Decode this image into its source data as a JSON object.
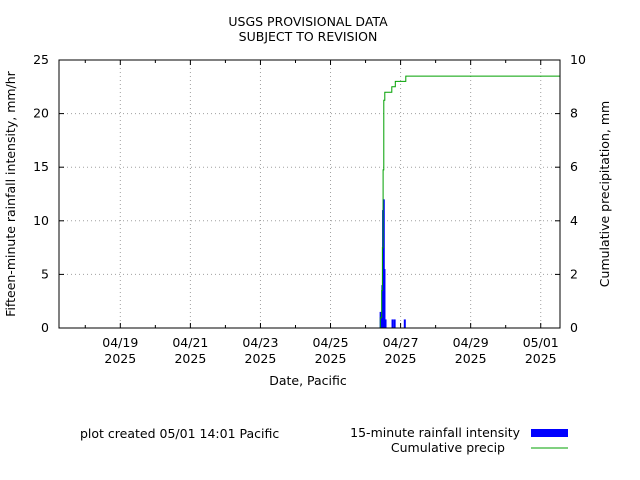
{
  "chart_data": {
    "type": "bar+line",
    "title_line1": "USGS PROVISIONAL DATA",
    "title_line2": "SUBJECT TO REVISION",
    "xlabel": "Date, Pacific",
    "ylabel_left": "Fifteen-minute rainfall intensity, mm/hr",
    "ylabel_right": "Cumulative precipitation, mm",
    "ylim_left": [
      0,
      25
    ],
    "ylim_right": [
      0,
      10
    ],
    "yticks_left": [
      "0",
      "5",
      "10",
      "15",
      "20",
      "25"
    ],
    "yticks_right": [
      "0",
      "2",
      "4",
      "6",
      "8",
      "10"
    ],
    "xlim_days": [
      17.25,
      31.55
    ],
    "xticks": [
      {
        "day": 19,
        "label1": "04/19",
        "label2": "2025"
      },
      {
        "day": 21,
        "label1": "04/21",
        "label2": "2025"
      },
      {
        "day": 23,
        "label1": "04/23",
        "label2": "2025"
      },
      {
        "day": 25,
        "label1": "04/25",
        "label2": "2025"
      },
      {
        "day": 27,
        "label1": "04/27",
        "label2": "2025"
      },
      {
        "day": 29,
        "label1": "04/29",
        "label2": "2025"
      },
      {
        "day": 31,
        "label1": "05/01",
        "label2": "2025"
      }
    ],
    "grid": true,
    "series": [
      {
        "name": "15-minute rainfall intensity",
        "color": "#0000ff",
        "kind": "bar",
        "x_days": [
          26.43,
          26.46,
          26.48,
          26.5,
          26.52,
          26.54,
          26.57,
          26.77,
          26.83,
          27.12
        ],
        "values": [
          1.5,
          1.5,
          4.0,
          11.0,
          12.0,
          5.5,
          0.8,
          0.8,
          0.8,
          0.8
        ]
      },
      {
        "name": "Cumulative precip",
        "color": "#00a000",
        "kind": "step",
        "x_days": [
          17.25,
          26.42,
          26.46,
          26.48,
          26.5,
          26.52,
          26.55,
          26.6,
          26.75,
          26.85,
          27.15,
          31.55
        ],
        "values": [
          0,
          0.38,
          1.4,
          3.0,
          5.9,
          8.5,
          8.8,
          8.8,
          9.0,
          9.2,
          9.4,
          9.4
        ]
      }
    ],
    "footer_note": "plot created 05/01 14:01 Pacific"
  }
}
